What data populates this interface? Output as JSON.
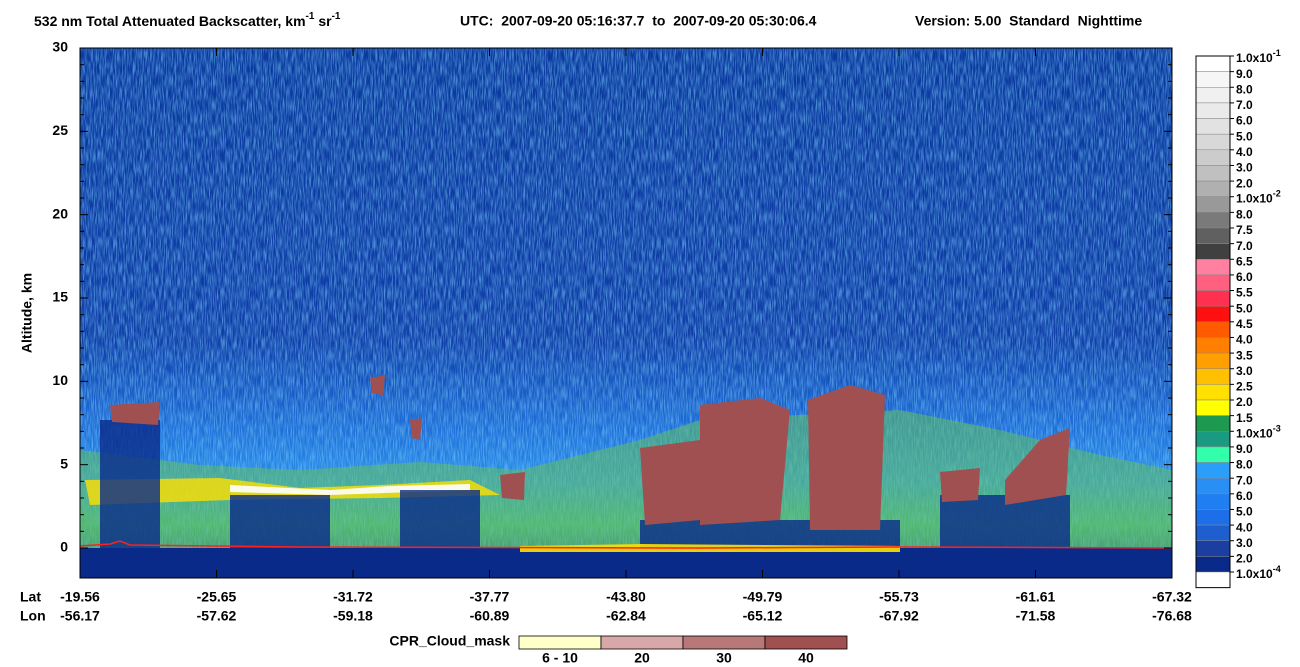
{
  "chart_data": {
    "type": "curtain",
    "title_parts": [
      {
        "text": "532 nm Total Attenuated Backscatter, km",
        "sup": false
      },
      {
        "text": "-1",
        "sup": true
      },
      {
        "text": " sr",
        "sup": false
      },
      {
        "text": "-1",
        "sup": true
      }
    ],
    "utc": "UTC:  2007-09-20 05:16:37.7  to  2007-09-20 05:30:06.4",
    "version": "Version: 5.00  Standard  Nighttime",
    "y_label": "Altitude, km",
    "ylim": [
      -1.8,
      30
    ],
    "yticks": [
      0,
      5,
      10,
      15,
      20,
      25,
      30
    ],
    "x_rows": [
      {
        "name": "Lat",
        "labels": [
          "-19.56",
          "-25.65",
          "-31.72",
          "-37.77",
          "-43.80",
          "-49.79",
          "-55.73",
          "-61.61",
          "-67.32"
        ]
      },
      {
        "name": "Lon",
        "labels": [
          "-56.17",
          "-57.62",
          "-59.18",
          "-60.89",
          "-62.84",
          "-65.12",
          "-67.92",
          "-71.58",
          "-76.68"
        ]
      }
    ],
    "colorbar": {
      "labels": [
        {
          "text": "1.0x10",
          "sup": "-1"
        },
        "9.0",
        "8.0",
        "7.0",
        "6.0",
        "5.0",
        "4.0",
        "3.0",
        "2.0",
        {
          "text": "1.0x10",
          "sup": "-2"
        },
        "8.0",
        "7.5",
        "7.0",
        "6.5",
        "6.0",
        "5.5",
        "5.0",
        "4.5",
        "4.0",
        "3.5",
        "3.0",
        "2.5",
        "2.0",
        "1.5",
        {
          "text": "1.0x10",
          "sup": "-3"
        },
        "9.0",
        "8.0",
        "7.0",
        "6.0",
        "5.0",
        "4.0",
        "3.0",
        "2.0",
        {
          "text": "1.0x10",
          "sup": "-4"
        }
      ],
      "colors": [
        "#ffffff",
        "#f6f6f6",
        "#f0f0f0",
        "#eaeaea",
        "#e2e2e2",
        "#d8d8d8",
        "#cccccc",
        "#c0c0c0",
        "#b0b0b0",
        "#999999",
        "#7a7a7a",
        "#606060",
        "#404040",
        "#ff80a0",
        "#ff6080",
        "#ff3050",
        "#ff1010",
        "#ff5a00",
        "#ff8000",
        "#ffa000",
        "#ffc000",
        "#ffe000",
        "#ffff00",
        "#1e9a50",
        "#1a9a80",
        "#33ffaa",
        "#2a9ef8",
        "#2a8ff5",
        "#1f7ff0",
        "#1c6fe8",
        "#1e5fd0",
        "#1a3fa0",
        "#0a2a8a"
      ]
    },
    "cpr_legend": {
      "label": "CPR_Cloud_mask",
      "items": [
        {
          "label": "6 - 10",
          "color": "#ffffc8"
        },
        {
          "label": "20",
          "color": "#d8a8a8"
        },
        {
          "label": "30",
          "color": "#b87878"
        },
        {
          "label": "40",
          "color": "#a05050"
        }
      ]
    }
  }
}
